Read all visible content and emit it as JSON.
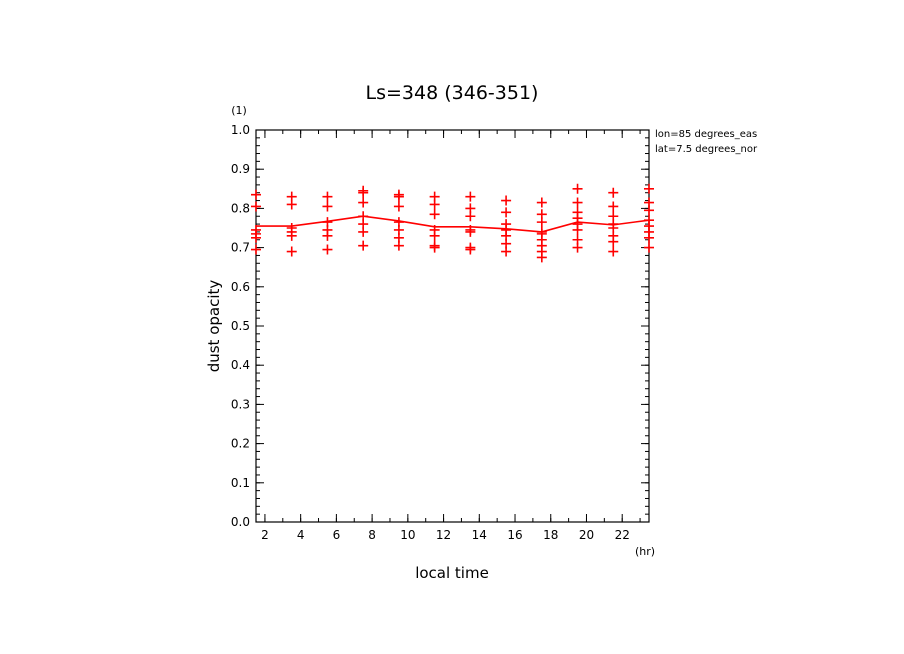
{
  "chart_data": {
    "type": "line",
    "title": "Ls=348 (346-351)",
    "xlabel": "local time",
    "ylabel": "dust opacity",
    "x_unit": "(hr)",
    "y_unit": "(1)",
    "xlim": [
      1.5,
      23.5
    ],
    "ylim": [
      0.0,
      1.0
    ],
    "x_ticks": [
      2,
      4,
      6,
      8,
      10,
      12,
      14,
      16,
      18,
      20,
      22
    ],
    "y_ticks": [
      0.0,
      0.1,
      0.2,
      0.3,
      0.4,
      0.5,
      0.6,
      0.7,
      0.8,
      0.9,
      1.0
    ],
    "annotations": [
      "lon=85 degrees_eas",
      "lat=7.5 degrees_nor"
    ],
    "line_color": "#ff0000",
    "mean_series": {
      "x": [
        1.5,
        3.5,
        5.5,
        7.5,
        9.5,
        11.5,
        13.5,
        15.5,
        17.5,
        19.5,
        21.5,
        23.5
      ],
      "y": [
        0.755,
        0.755,
        0.767,
        0.78,
        0.768,
        0.753,
        0.753,
        0.748,
        0.74,
        0.765,
        0.758,
        0.77
      ]
    },
    "samples": [
      {
        "x": 1.5,
        "y": [
          0.835,
          0.805,
          0.745,
          0.735,
          0.725,
          0.695
        ]
      },
      {
        "x": 3.5,
        "y": [
          0.83,
          0.81,
          0.75,
          0.74,
          0.73,
          0.69
        ]
      },
      {
        "x": 5.5,
        "y": [
          0.83,
          0.805,
          0.765,
          0.745,
          0.73,
          0.695
        ]
      },
      {
        "x": 7.5,
        "y": [
          0.845,
          0.84,
          0.815,
          0.78,
          0.76,
          0.74,
          0.705
        ]
      },
      {
        "x": 9.5,
        "y": [
          0.835,
          0.83,
          0.805,
          0.765,
          0.745,
          0.725,
          0.705
        ]
      },
      {
        "x": 11.5,
        "y": [
          0.83,
          0.81,
          0.785,
          0.745,
          0.73,
          0.705,
          0.7
        ]
      },
      {
        "x": 13.5,
        "y": [
          0.83,
          0.8,
          0.78,
          0.745,
          0.74,
          0.7,
          0.695
        ]
      },
      {
        "x": 15.5,
        "y": [
          0.82,
          0.79,
          0.76,
          0.745,
          0.73,
          0.71,
          0.69
        ]
      },
      {
        "x": 17.5,
        "y": [
          0.815,
          0.785,
          0.765,
          0.74,
          0.735,
          0.72,
          0.705,
          0.69,
          0.675
        ]
      },
      {
        "x": 19.5,
        "y": [
          0.85,
          0.815,
          0.79,
          0.775,
          0.76,
          0.745,
          0.72,
          0.7
        ]
      },
      {
        "x": 21.5,
        "y": [
          0.84,
          0.805,
          0.78,
          0.76,
          0.75,
          0.73,
          0.715,
          0.69
        ]
      },
      {
        "x": 23.5,
        "y": [
          0.85,
          0.815,
          0.795,
          0.77,
          0.755,
          0.74,
          0.725,
          0.7
        ]
      }
    ]
  }
}
